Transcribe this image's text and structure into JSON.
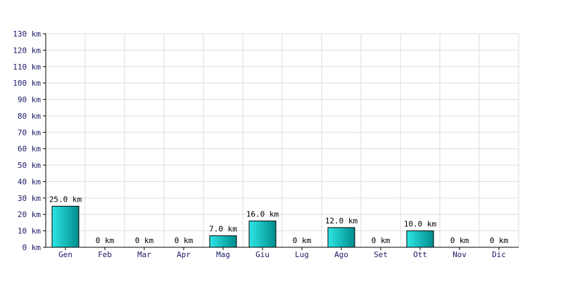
{
  "chart_data": {
    "type": "bar",
    "title": "",
    "xlabel": "",
    "ylabel": "",
    "unit": "km",
    "categories": [
      "Gen",
      "Feb",
      "Mar",
      "Apr",
      "Mag",
      "Giu",
      "Lug",
      "Ago",
      "Set",
      "Ott",
      "Nov",
      "Dic"
    ],
    "values": [
      25,
      0,
      0,
      0,
      7,
      16,
      0,
      12,
      0,
      10,
      0,
      0
    ],
    "data_labels": [
      "25.0 km",
      "0 km",
      "0 km",
      "0 km",
      "7.0 km",
      "16.0 km",
      "0 km",
      "12.0 km",
      "0 km",
      "10.0 km",
      "0 km",
      "0 km"
    ],
    "ylim": [
      0,
      130
    ],
    "yticks": [
      0,
      10,
      20,
      30,
      40,
      50,
      60,
      70,
      80,
      90,
      100,
      110,
      120,
      130
    ],
    "ytick_labels": [
      "0 km",
      "10 km",
      "20 km",
      "30 km",
      "40 km",
      "50 km",
      "60 km",
      "70 km",
      "80 km",
      "90 km",
      "100 km",
      "110 km",
      "120 km",
      "130 km"
    ],
    "grid": true,
    "legend": "none",
    "colors": {
      "bar_light": "#2ee6e6",
      "bar_dark": "#008c8c",
      "bar_outline": "#000000",
      "grid": "#dddddd",
      "axis": "#000000",
      "tick_text": "#1a1a66"
    }
  }
}
